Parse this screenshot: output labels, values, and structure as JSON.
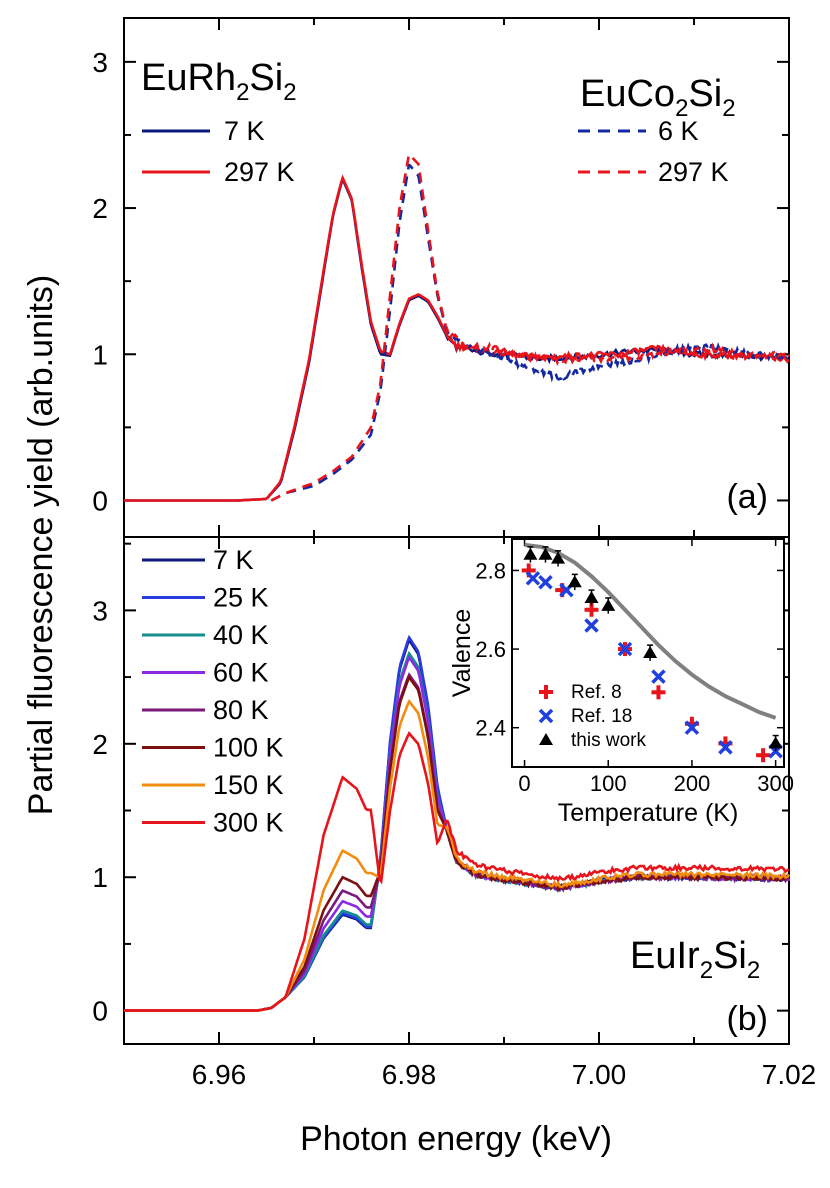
{
  "chart_data": {
    "type": "line",
    "shared_x_axis": {
      "xlabel": "Photon energy (keV)",
      "xlim": [
        6.95,
        7.02
      ],
      "xticks": [
        "6.96",
        "6.98",
        "7.00",
        "7.02"
      ]
    },
    "ylabel": "Partial fluorescence yield (arb.units)",
    "panels": [
      {
        "panel_label": "(a)",
        "ylim": [
          -0.25,
          3.3
        ],
        "yticks": [
          "0",
          "1",
          "2",
          "3"
        ],
        "legend_groups": [
          {
            "compound_base": "EuRh",
            "sub1": "2",
            "mid": "Si",
            "sub2": "2",
            "series": [
              {
                "name": "7 K",
                "style": "solid",
                "color": "#0a1a7a"
              },
              {
                "name": "297 K",
                "style": "solid",
                "color": "#e8141b"
              }
            ]
          },
          {
            "compound_base": "EuCo",
            "sub1": "2",
            "mid": "Si",
            "sub2": "2",
            "series": [
              {
                "name": "6 K",
                "style": "dashed",
                "color": "#1428a0"
              },
              {
                "name": "297 K",
                "style": "dashed",
                "color": "#e8141b"
              }
            ]
          }
        ],
        "series_data": [
          {
            "name": "EuRh2Si2 7 K",
            "color": "#0a1a7a",
            "dash": false,
            "points": [
              [
                6.95,
                0
              ],
              [
                6.962,
                0
              ],
              [
                6.965,
                0.01
              ],
              [
                6.9665,
                0.12
              ],
              [
                6.968,
                0.5
              ],
              [
                6.9695,
                0.95
              ],
              [
                6.971,
                1.55
              ],
              [
                6.972,
                1.95
              ],
              [
                6.973,
                2.2
              ],
              [
                6.974,
                2.05
              ],
              [
                6.975,
                1.6
              ],
              [
                6.976,
                1.2
              ],
              [
                6.977,
                1.0
              ],
              [
                6.978,
                0.99
              ],
              [
                6.979,
                1.2
              ],
              [
                6.98,
                1.37
              ],
              [
                6.981,
                1.4
              ],
              [
                6.982,
                1.36
              ],
              [
                6.983,
                1.25
              ],
              [
                6.984,
                1.12
              ],
              [
                6.985,
                1.05
              ],
              [
                6.987,
                1.02
              ],
              [
                6.99,
                1.0
              ],
              [
                6.994,
                0.97
              ],
              [
                6.998,
                0.98
              ],
              [
                7.002,
                1.01
              ],
              [
                7.006,
                1.03
              ],
              [
                7.01,
                1.0
              ],
              [
                7.015,
                0.99
              ],
              [
                7.02,
                0.97
              ]
            ]
          },
          {
            "name": "EuRh2Si2 297 K",
            "color": "#e8141b",
            "dash": false,
            "points": [
              [
                6.95,
                0
              ],
              [
                6.962,
                0
              ],
              [
                6.965,
                0.01
              ],
              [
                6.9665,
                0.13
              ],
              [
                6.968,
                0.52
              ],
              [
                6.9695,
                0.97
              ],
              [
                6.971,
                1.57
              ],
              [
                6.972,
                1.96
              ],
              [
                6.973,
                2.21
              ],
              [
                6.974,
                2.06
              ],
              [
                6.975,
                1.62
              ],
              [
                6.976,
                1.22
              ],
              [
                6.977,
                1.02
              ],
              [
                6.978,
                1.0
              ],
              [
                6.979,
                1.21
              ],
              [
                6.98,
                1.38
              ],
              [
                6.981,
                1.41
              ],
              [
                6.982,
                1.37
              ],
              [
                6.983,
                1.26
              ],
              [
                6.984,
                1.13
              ],
              [
                6.985,
                1.06
              ],
              [
                6.987,
                1.03
              ],
              [
                6.99,
                1.0
              ],
              [
                6.994,
                0.98
              ],
              [
                6.998,
                0.99
              ],
              [
                7.002,
                1.0
              ],
              [
                7.006,
                1.04
              ],
              [
                7.01,
                1.0
              ],
              [
                7.015,
                0.99
              ],
              [
                7.02,
                0.97
              ]
            ]
          },
          {
            "name": "EuCo2Si2 6 K",
            "color": "#1428a0",
            "dash": true,
            "points": [
              [
                6.9655,
                0
              ],
              [
                6.967,
                0.05
              ],
              [
                6.97,
                0.1
              ],
              [
                6.972,
                0.18
              ],
              [
                6.974,
                0.28
              ],
              [
                6.976,
                0.45
              ],
              [
                6.977,
                0.75
              ],
              [
                6.978,
                1.3
              ],
              [
                6.979,
                1.9
              ],
              [
                6.98,
                2.3
              ],
              [
                6.981,
                2.22
              ],
              [
                6.982,
                1.8
              ],
              [
                6.983,
                1.4
              ],
              [
                6.984,
                1.15
              ],
              [
                6.986,
                1.05
              ],
              [
                6.989,
                1.0
              ],
              [
                6.992,
                0.92
              ],
              [
                6.996,
                0.84
              ],
              [
                7.0,
                0.92
              ],
              [
                7.004,
                0.96
              ],
              [
                7.008,
                1.03
              ],
              [
                7.012,
                1.05
              ],
              [
                7.016,
                1.0
              ],
              [
                7.02,
                0.98
              ]
            ]
          },
          {
            "name": "EuCo2Si2 297 K",
            "color": "#e8141b",
            "dash": true,
            "points": [
              [
                6.9655,
                0
              ],
              [
                6.967,
                0.05
              ],
              [
                6.97,
                0.12
              ],
              [
                6.972,
                0.2
              ],
              [
                6.974,
                0.3
              ],
              [
                6.976,
                0.5
              ],
              [
                6.977,
                0.8
              ],
              [
                6.978,
                1.4
              ],
              [
                6.979,
                2.0
              ],
              [
                6.98,
                2.37
              ],
              [
                6.981,
                2.3
              ],
              [
                6.982,
                1.85
              ],
              [
                6.983,
                1.42
              ],
              [
                6.984,
                1.16
              ],
              [
                6.986,
                1.06
              ],
              [
                6.989,
                1.04
              ],
              [
                6.992,
                0.98
              ],
              [
                6.996,
                0.96
              ],
              [
                7.0,
                0.97
              ],
              [
                7.004,
                0.98
              ],
              [
                7.008,
                1.02
              ],
              [
                7.012,
                1.03
              ],
              [
                7.016,
                1.0
              ],
              [
                7.02,
                0.99
              ]
            ]
          }
        ]
      },
      {
        "panel_label": "(b)",
        "ylim": [
          -0.25,
          3.55
        ],
        "yticks": [
          "0",
          "1",
          "2",
          "3"
        ],
        "compound": {
          "base": "EuIr",
          "sub1": "2",
          "mid": "Si",
          "sub2": "2"
        },
        "series_data": [
          {
            "name": "7 K",
            "color": "#0a1a7a",
            "shoulder": 0.72,
            "peak": 2.78,
            "tail": 1.0
          },
          {
            "name": "25 K",
            "color": "#2a3ce0",
            "shoulder": 0.73,
            "peak": 2.8,
            "tail": 1.0
          },
          {
            "name": "40 K",
            "color": "#138f8f",
            "shoulder": 0.75,
            "peak": 2.68,
            "tail": 1.0
          },
          {
            "name": "60 K",
            "color": "#8a2be2",
            "shoulder": 0.82,
            "peak": 2.65,
            "tail": 1.0
          },
          {
            "name": "80 K",
            "color": "#7b1a7a",
            "shoulder": 0.9,
            "peak": 2.52,
            "tail": 1.0
          },
          {
            "name": "100 K",
            "color": "#7a1010",
            "shoulder": 1.0,
            "peak": 2.5,
            "tail": 1.0
          },
          {
            "name": "150 K",
            "color": "#f28c0f",
            "shoulder": 1.2,
            "peak": 2.32,
            "tail": 1.02
          },
          {
            "name": "300 K",
            "color": "#e8141b",
            "shoulder": 1.75,
            "peak": 2.08,
            "tail": 1.07
          }
        ]
      }
    ],
    "inset": {
      "type": "scatter",
      "xlabel": "Temperature (K)",
      "ylabel": "Valence",
      "xlim": [
        -15,
        310
      ],
      "ylim": [
        2.3,
        2.88
      ],
      "xticks": [
        "0",
        "100",
        "200",
        "300"
      ],
      "yticks": [
        "2.4",
        "2.6",
        "2.8"
      ],
      "series": [
        {
          "name": "Ref. 8",
          "marker": "plus",
          "color": "#e8141b",
          "x": [
            5,
            45,
            80,
            120,
            160,
            200,
            240,
            285
          ],
          "y": [
            2.8,
            2.75,
            2.7,
            2.6,
            2.49,
            2.41,
            2.36,
            2.33
          ]
        },
        {
          "name": "Ref. 18",
          "marker": "cross",
          "color": "#1f3fe0",
          "x": [
            10,
            25,
            50,
            80,
            120,
            160,
            200,
            240,
            300
          ],
          "y": [
            2.78,
            2.77,
            2.75,
            2.66,
            2.6,
            2.53,
            2.4,
            2.35,
            2.34
          ]
        },
        {
          "name": "this work",
          "marker": "triangle",
          "color": "#000000",
          "x": [
            7,
            25,
            40,
            60,
            80,
            100,
            150,
            300
          ],
          "y": [
            2.84,
            2.84,
            2.83,
            2.77,
            2.73,
            2.71,
            2.59,
            2.36
          ],
          "err": 0.02
        }
      ],
      "fit_curve": {
        "color": "#808080",
        "x": [
          0,
          20,
          40,
          60,
          80,
          100,
          120,
          140,
          160,
          180,
          200,
          220,
          240,
          260,
          280,
          300
        ],
        "y": [
          2.865,
          2.86,
          2.845,
          2.82,
          2.785,
          2.745,
          2.7,
          2.655,
          2.61,
          2.57,
          2.535,
          2.505,
          2.48,
          2.46,
          2.44,
          2.425
        ]
      }
    }
  }
}
